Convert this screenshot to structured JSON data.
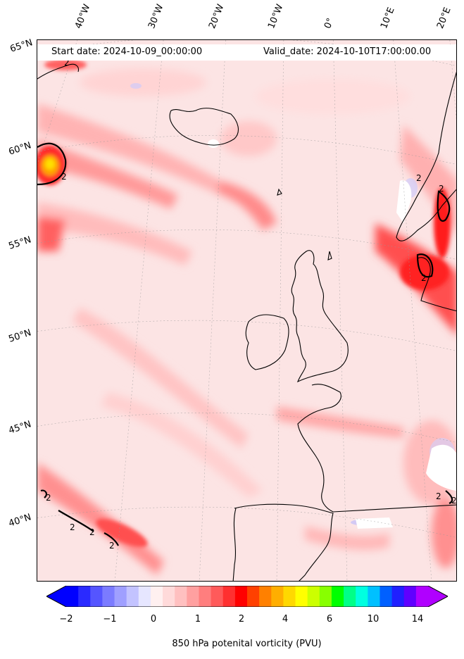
{
  "header": {
    "start_date": "Start date: 2024-10-09_00:00:00",
    "valid_date": "Valid_date: 2024-10-10T17:00:00.00"
  },
  "longitude_labels": [
    "40°W",
    "30°W",
    "20°W",
    "10°W",
    "0°",
    "10°E",
    "20°E"
  ],
  "latitude_labels": [
    "65°N",
    "60°N",
    "55°N",
    "50°N",
    "45°N",
    "40°N"
  ],
  "contour_labels": [
    "2",
    "2",
    "2",
    "2",
    "2",
    "2",
    "2",
    "2",
    "2",
    "2",
    "2"
  ],
  "colorbar": {
    "label": "850 hPa potenital vorticity (PVU)",
    "ticks": [
      "−2",
      "−1",
      "0",
      "1",
      "2",
      "4",
      "6",
      "10",
      "14"
    ],
    "colors": [
      "#0000ff",
      "#2a2aff",
      "#5555ff",
      "#7b7bff",
      "#9f9fff",
      "#c3c3ff",
      "#e6e6ff",
      "#fff0f0",
      "#ffdada",
      "#ffc0c0",
      "#ffa0a0",
      "#ff7e7e",
      "#ff5a5a",
      "#ff3030",
      "#ff0000",
      "#ff4000",
      "#ff8000",
      "#ffae00",
      "#ffd800",
      "#ffff00",
      "#ccff00",
      "#88ff00",
      "#00ff00",
      "#00ff88",
      "#00ffe0",
      "#00c0ff",
      "#0060ff",
      "#2020ff",
      "#6000ff",
      "#b000ff"
    ]
  }
}
